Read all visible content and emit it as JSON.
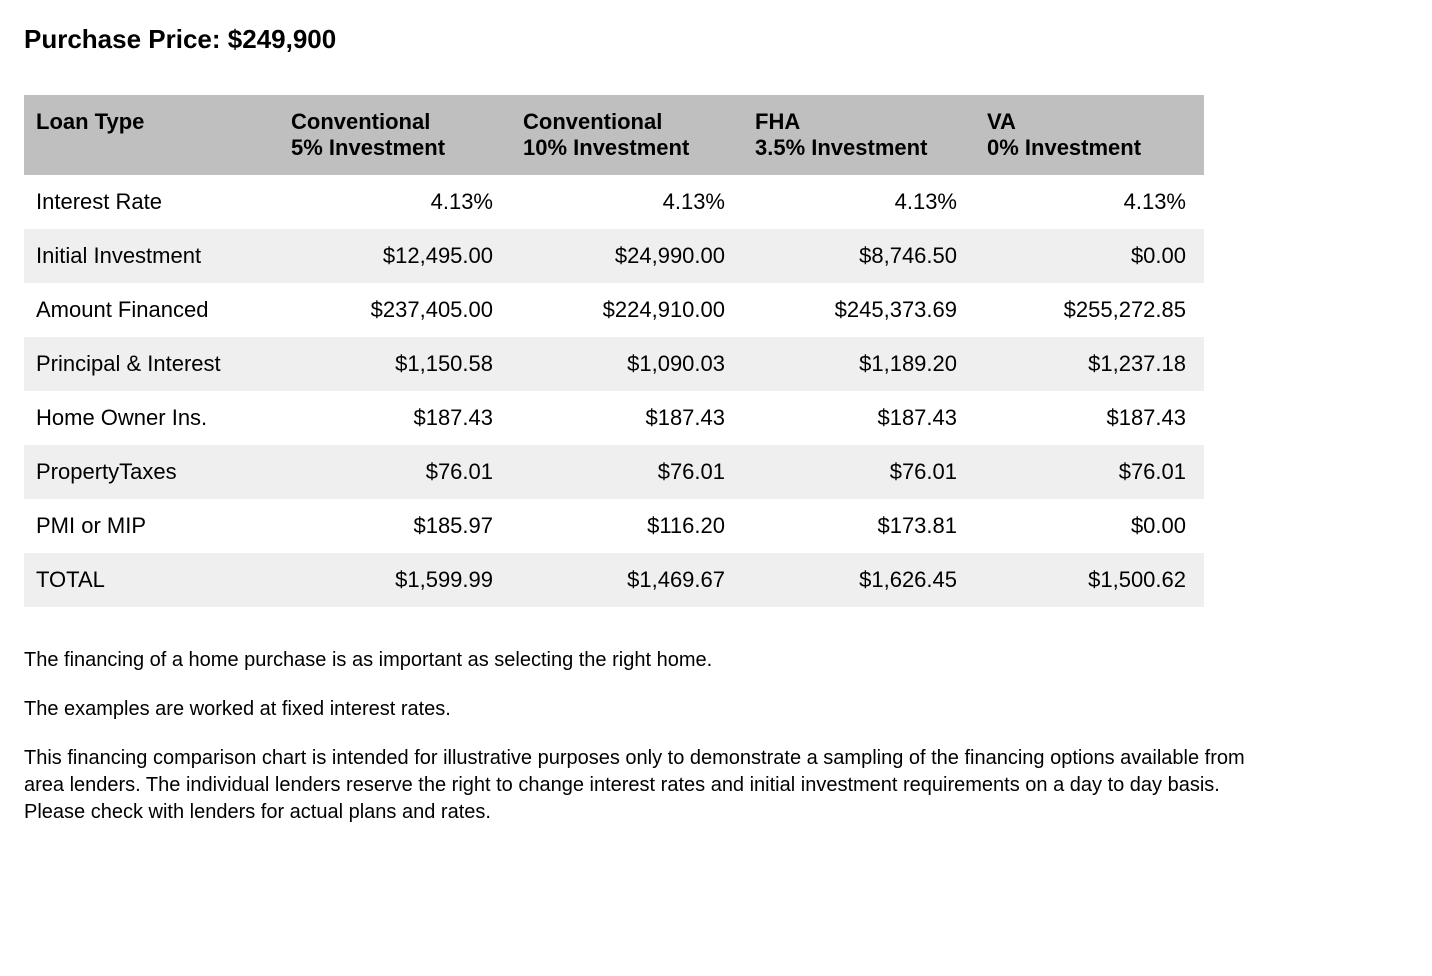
{
  "title": "Purchase Price: $249,900",
  "table": {
    "type": "table",
    "header_bg": "#bfbfbf",
    "row_bg_odd": "#ffffff",
    "row_bg_even": "#efefef",
    "text_color": "#000000",
    "header_fontsize": 22,
    "cell_fontsize": 22,
    "columns": [
      {
        "line1": "Loan Type",
        "line2": ""
      },
      {
        "line1": "Conventional",
        "line2": "5% Investment"
      },
      {
        "line1": "Conventional",
        "line2": "10% Investment"
      },
      {
        "line1": "FHA",
        "line2": "3.5% Investment"
      },
      {
        "line1": "VA",
        "line2": "0% Investment"
      }
    ],
    "rows": [
      {
        "label": "Interest Rate",
        "values": [
          "4.13%",
          "4.13%",
          "4.13%",
          "4.13%"
        ]
      },
      {
        "label": "Initial Investment",
        "values": [
          "$12,495.00",
          "$24,990.00",
          "$8,746.50",
          "$0.00"
        ]
      },
      {
        "label": "Amount Financed",
        "values": [
          "$237,405.00",
          "$224,910.00",
          "$245,373.69",
          "$255,272.85"
        ]
      },
      {
        "label": "Principal & Interest",
        "values": [
          "$1,150.58",
          "$1,090.03",
          "$1,189.20",
          "$1,237.18"
        ]
      },
      {
        "label": "Home Owner Ins.",
        "values": [
          "$187.43",
          "$187.43",
          "$187.43",
          "$187.43"
        ]
      },
      {
        "label": "PropertyTaxes",
        "values": [
          "$76.01",
          "$76.01",
          "$76.01",
          "$76.01"
        ]
      },
      {
        "label": "PMI or MIP",
        "values": [
          "$185.97",
          "$116.20",
          "$173.81",
          "$0.00"
        ]
      },
      {
        "label": "TOTAL",
        "values": [
          "$1,599.99",
          "$1,469.67",
          "$1,626.45",
          "$1,500.62"
        ]
      }
    ]
  },
  "notes": [
    "The financing of a home purchase is as important as selecting the right home.",
    "The examples are worked at fixed interest rates.",
    "This financing comparison chart is intended for illustrative purposes only to demonstrate a sampling of the financing options available from area lenders. The individual lenders reserve the right to change interest rates and initial investment requirements on a day to day basis. Please check with lenders for actual plans and rates."
  ]
}
